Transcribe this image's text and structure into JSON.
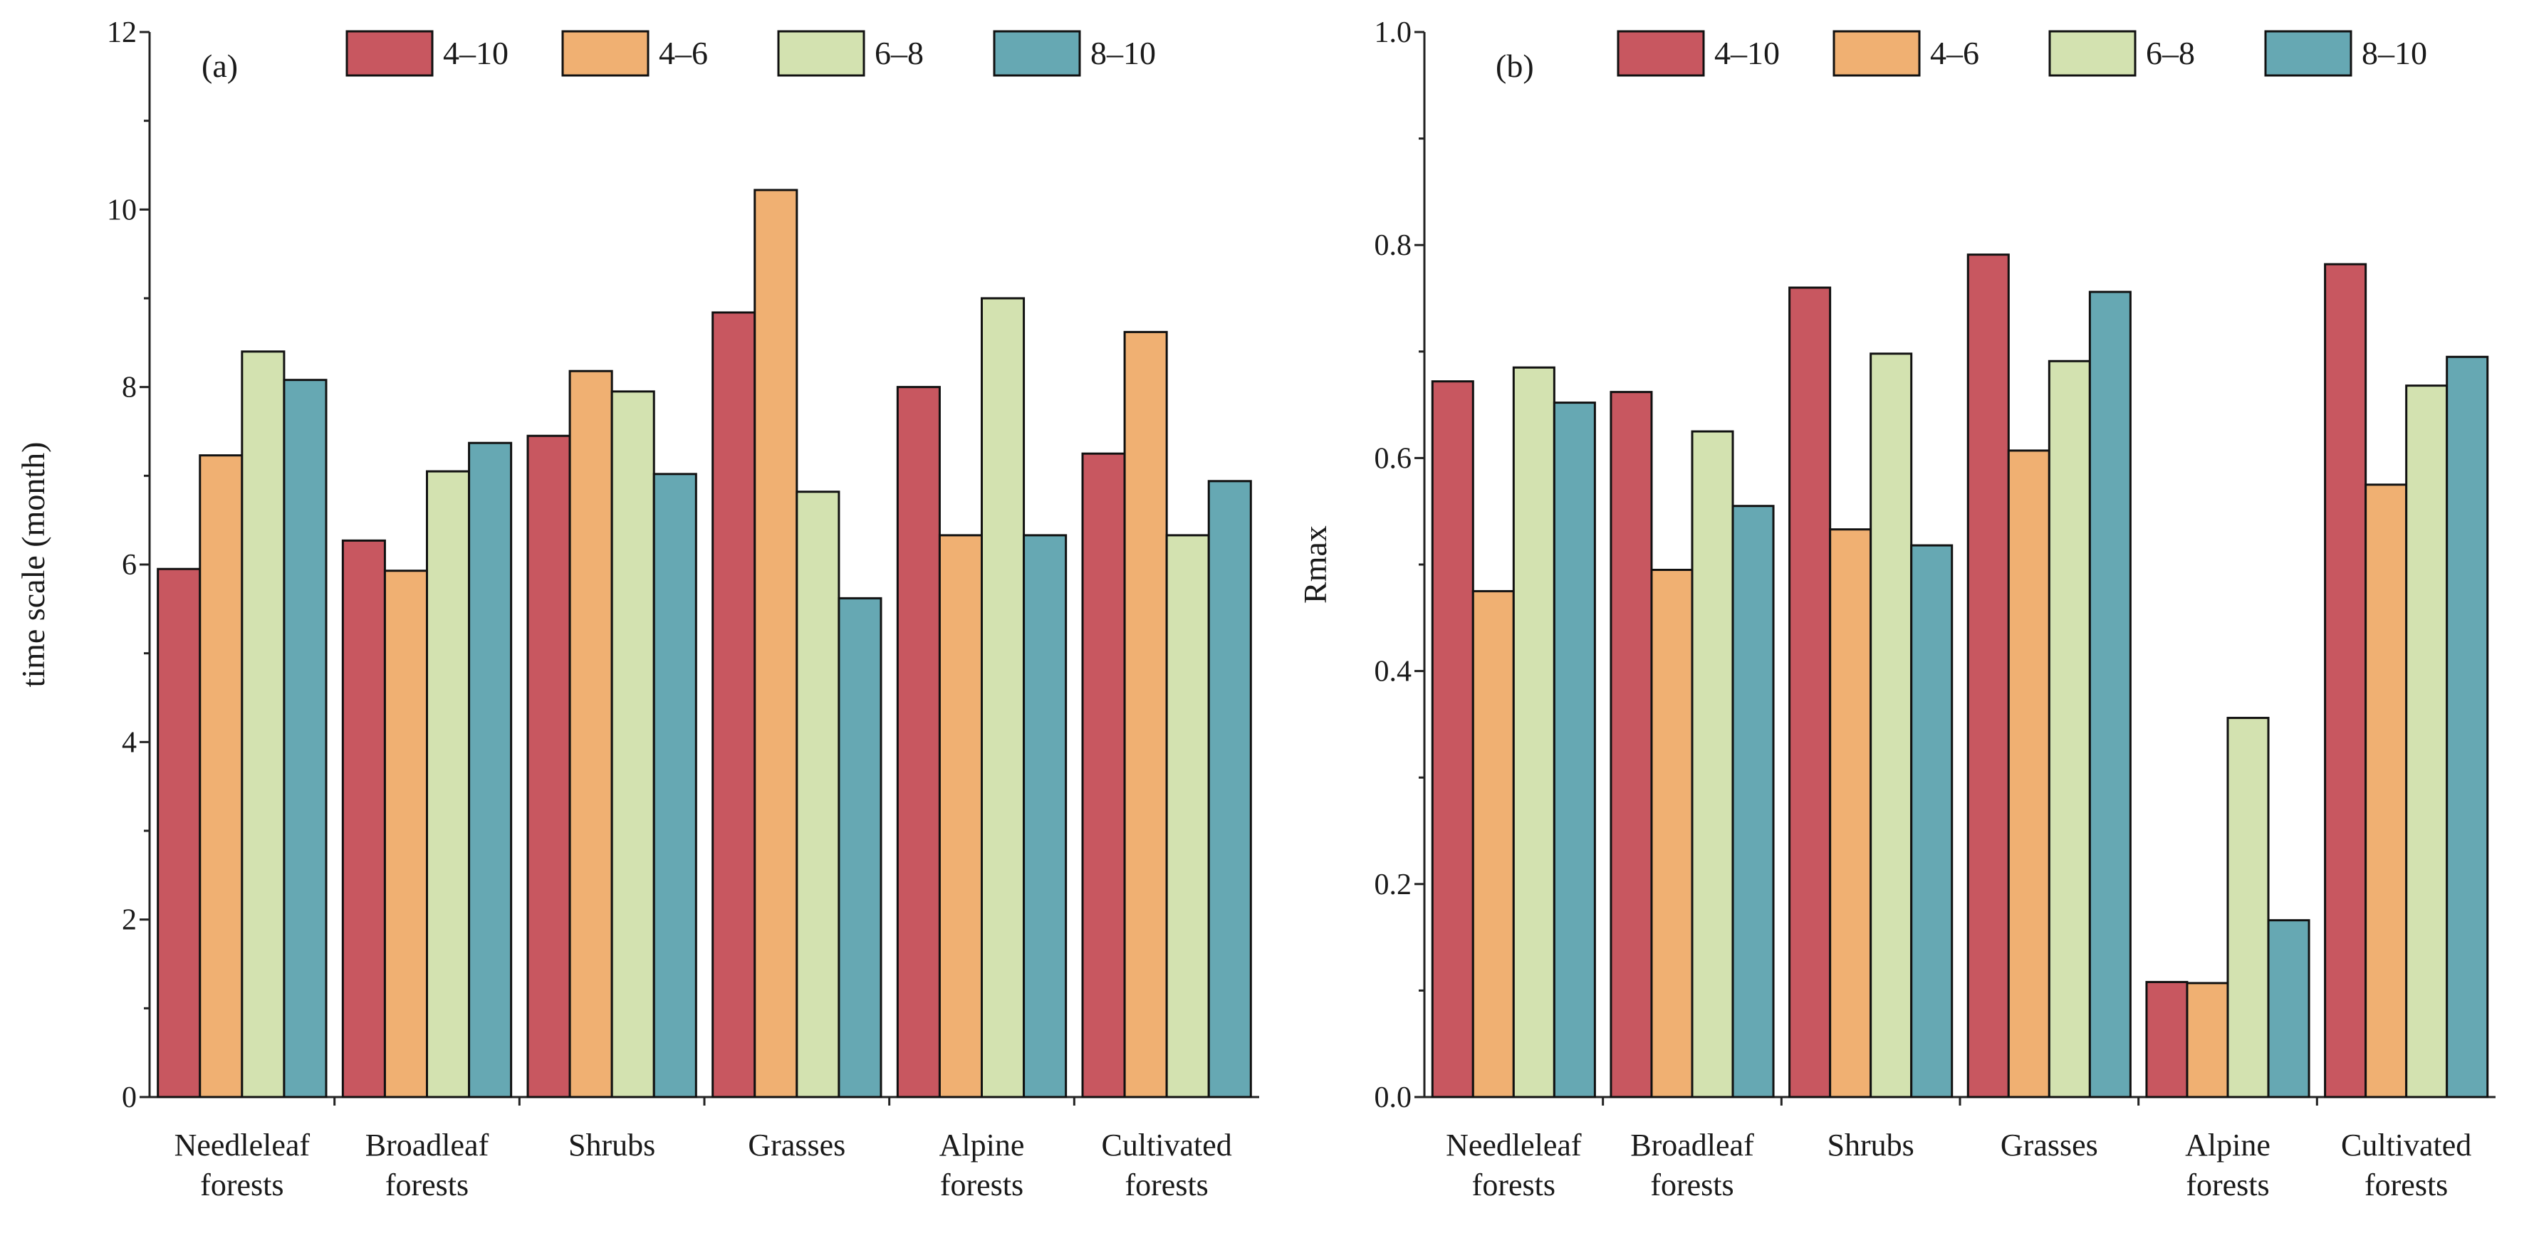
{
  "chart_data": [
    {
      "type": "bar",
      "panel_label": "(a)",
      "title": "",
      "xlabel": "",
      "ylabel": "time scale (month)",
      "ylim": [
        0,
        12
      ],
      "yticks": [
        0,
        2,
        4,
        6,
        8,
        10,
        12
      ],
      "ytick_labels": [
        "0",
        "2",
        "4",
        "6",
        "8",
        "10",
        "12"
      ],
      "categories": [
        [
          "Needleleaf",
          "forests"
        ],
        [
          "Broadleaf",
          "forests"
        ],
        [
          "Shrubs"
        ],
        [
          "Grasses"
        ],
        [
          "Alpine",
          "forests"
        ],
        [
          "Cultivated",
          "forests"
        ]
      ],
      "legend_position": "top-right",
      "series": [
        {
          "name": "4–10",
          "color": "#c85760",
          "values": [
            5.95,
            6.27,
            7.45,
            8.84,
            8.0,
            7.25
          ]
        },
        {
          "name": "4–6",
          "color": "#f0b072",
          "values": [
            7.23,
            5.93,
            8.18,
            10.22,
            6.33,
            8.62
          ]
        },
        {
          "name": "6–8",
          "color": "#d3e2b0",
          "values": [
            8.4,
            7.05,
            7.95,
            6.82,
            9.0,
            6.33
          ]
        },
        {
          "name": "8–10",
          "color": "#66a8b3",
          "values": [
            8.08,
            7.37,
            7.02,
            5.62,
            6.33,
            6.94
          ]
        }
      ]
    },
    {
      "type": "bar",
      "panel_label": "(b)",
      "title": "",
      "xlabel": "",
      "ylabel": "Rmax",
      "ylim": [
        0,
        1.0
      ],
      "yticks": [
        0,
        0.2,
        0.4,
        0.6,
        0.8,
        1.0
      ],
      "ytick_labels": [
        "0.0",
        "0.2",
        "0.4",
        "0.6",
        "0.8",
        "1.0"
      ],
      "categories": [
        [
          "Needleleaf",
          "forests"
        ],
        [
          "Broadleaf",
          "forests"
        ],
        [
          "Shrubs"
        ],
        [
          "Grasses"
        ],
        [
          "Alpine",
          "forests"
        ],
        [
          "Cultivated",
          "forests"
        ]
      ],
      "legend_position": "top-right",
      "series": [
        {
          "name": "4–10",
          "color": "#c85760",
          "values": [
            0.672,
            0.662,
            0.76,
            0.791,
            0.108,
            0.782
          ]
        },
        {
          "name": "4–6",
          "color": "#f0b072",
          "values": [
            0.475,
            0.495,
            0.533,
            0.607,
            0.107,
            0.575
          ]
        },
        {
          "name": "6–8",
          "color": "#d3e2b0",
          "values": [
            0.685,
            0.625,
            0.698,
            0.691,
            0.356,
            0.668
          ]
        },
        {
          "name": "8–10",
          "color": "#66a8b3",
          "values": [
            0.652,
            0.555,
            0.518,
            0.756,
            0.166,
            0.695
          ]
        }
      ]
    }
  ]
}
